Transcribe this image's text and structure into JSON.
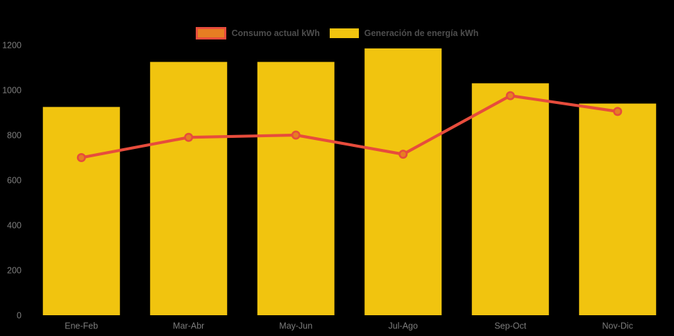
{
  "chart_data": {
    "type": "mixed",
    "categories": [
      "Ene-Feb",
      "Mar-Abr",
      "May-Jun",
      "Jul-Ago",
      "Sep-Oct",
      "Nov-Dic"
    ],
    "series": [
      {
        "name": "Consumo actual kWh",
        "type": "line",
        "values": [
          700,
          790,
          800,
          715,
          975,
          905
        ],
        "line_color": "#e74c3c",
        "marker_fill": "#e67e22",
        "marker_border": "#e74c3c"
      },
      {
        "name": "Generación de energía kWh",
        "type": "bar",
        "values": [
          925,
          1125,
          1125,
          1185,
          1030,
          940
        ],
        "bar_color": "#f1c40f"
      }
    ],
    "title": "",
    "xlabel": "",
    "ylabel": "",
    "ylim": [
      0,
      1200
    ],
    "y_ticks": [
      0,
      200,
      400,
      600,
      800,
      1000,
      1200
    ],
    "grid": false,
    "legend_position": "top-center",
    "background_color": "#000000",
    "tick_label_color": "#7d7d7d",
    "legend_label_color": "#4d4d4d"
  }
}
